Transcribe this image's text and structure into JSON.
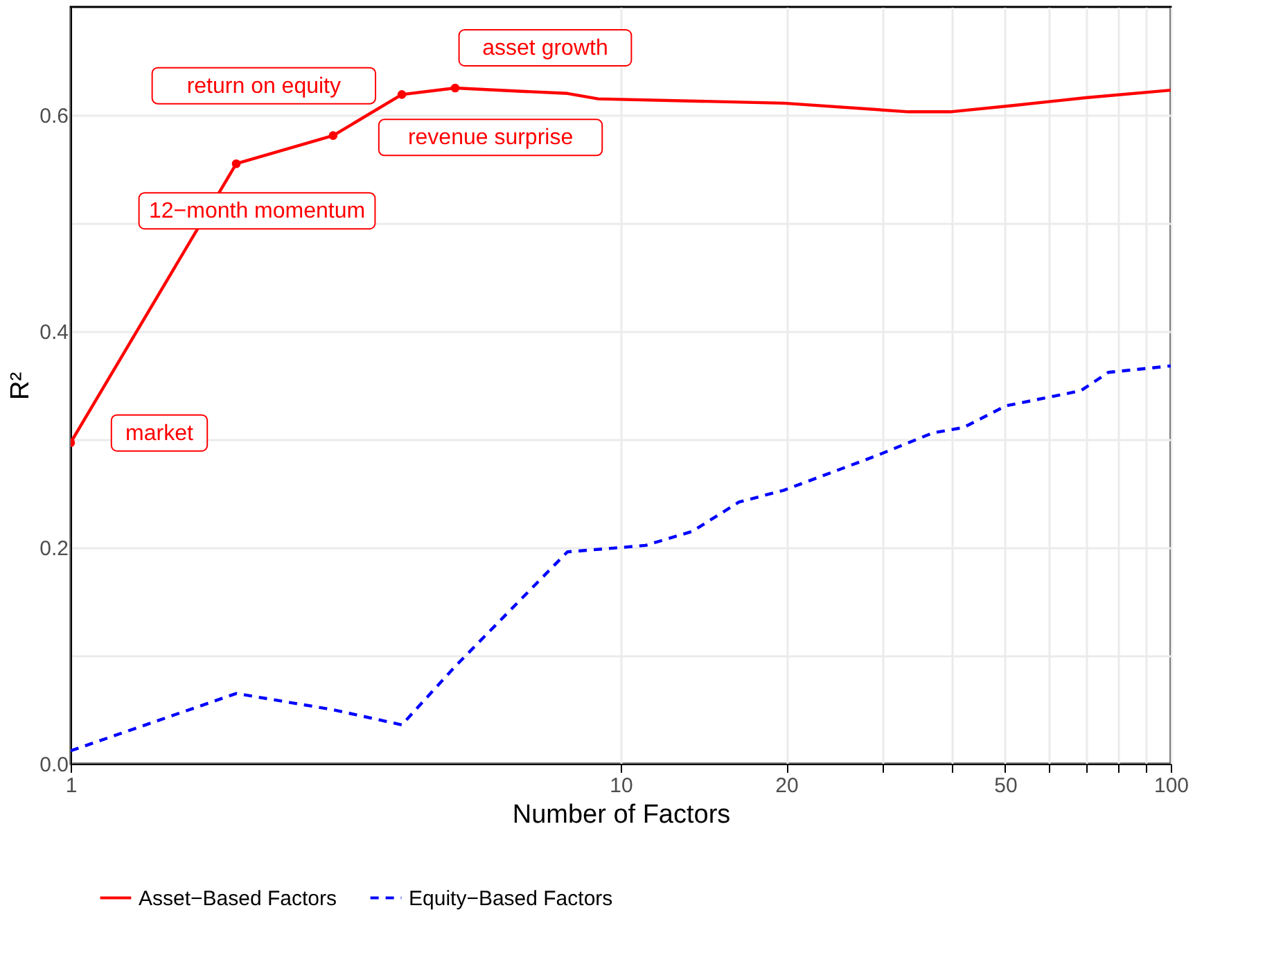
{
  "chart_data": {
    "type": "line",
    "xlabel": "Number of Factors",
    "ylabel": "R²",
    "log": "x",
    "grid": true,
    "legend": "bottom",
    "xlim": [
      1,
      100
    ],
    "ylim": [
      0,
      0.7
    ],
    "xticks": [
      1,
      10,
      20,
      {
        "value": 30,
        "label": null
      },
      {
        "value": 40,
        "label": null
      },
      50,
      {
        "value": 60,
        "label": null
      },
      {
        "value": 70,
        "label": null
      },
      {
        "value": 80,
        "label": null
      },
      {
        "value": 90,
        "label": null
      },
      100
    ],
    "yticks": [
      {
        "value": 0,
        "label": "0.0"
      },
      {
        "value": 0.1,
        "label": null
      },
      0.2,
      {
        "value": 0.3,
        "label": null
      },
      0.4,
      {
        "value": 0.5,
        "label": null
      },
      0.6
    ],
    "series": [
      {
        "name": "Asset−Based Factors",
        "color": "#ff0000",
        "line_style": "solid",
        "x": [
          1,
          2,
          3,
          4,
          5,
          6.6,
          8,
          9.1,
          19.8,
          33.4,
          39.7,
          52,
          70,
          100
        ],
        "values": [
          0.297,
          0.555,
          0.581,
          0.619,
          0.625,
          0.622,
          0.62,
          0.615,
          0.611,
          0.603,
          0.603,
          0.609,
          0.616,
          0.623
        ]
      },
      {
        "name": "Equity−Based Factors",
        "color": "#0000ff",
        "line_style": "dashed",
        "x": [
          1,
          2,
          3,
          4,
          5,
          8,
          10,
          11.1,
          13.5,
          16.4,
          19.8,
          29.2,
          36.9,
          42,
          50.1,
          68.6,
          77,
          100
        ],
        "values": [
          0.012,
          0.065,
          0.05,
          0.036,
          0.09,
          0.196,
          0.2,
          0.202,
          0.215,
          0.242,
          0.253,
          0.285,
          0.306,
          0.311,
          0.331,
          0.345,
          0.362,
          0.368
        ]
      }
    ],
    "annotations": [
      {
        "text": "market",
        "x": 1,
        "y": 0.297
      },
      {
        "text": "12−month momentum",
        "x": 2,
        "y": 0.555
      },
      {
        "text": "return on equity",
        "x": 3,
        "y": 0.581
      },
      {
        "text": "revenue surprise",
        "x": 4,
        "y": 0.619
      },
      {
        "text": "asset growth",
        "x": 5,
        "y": 0.625
      }
    ]
  }
}
